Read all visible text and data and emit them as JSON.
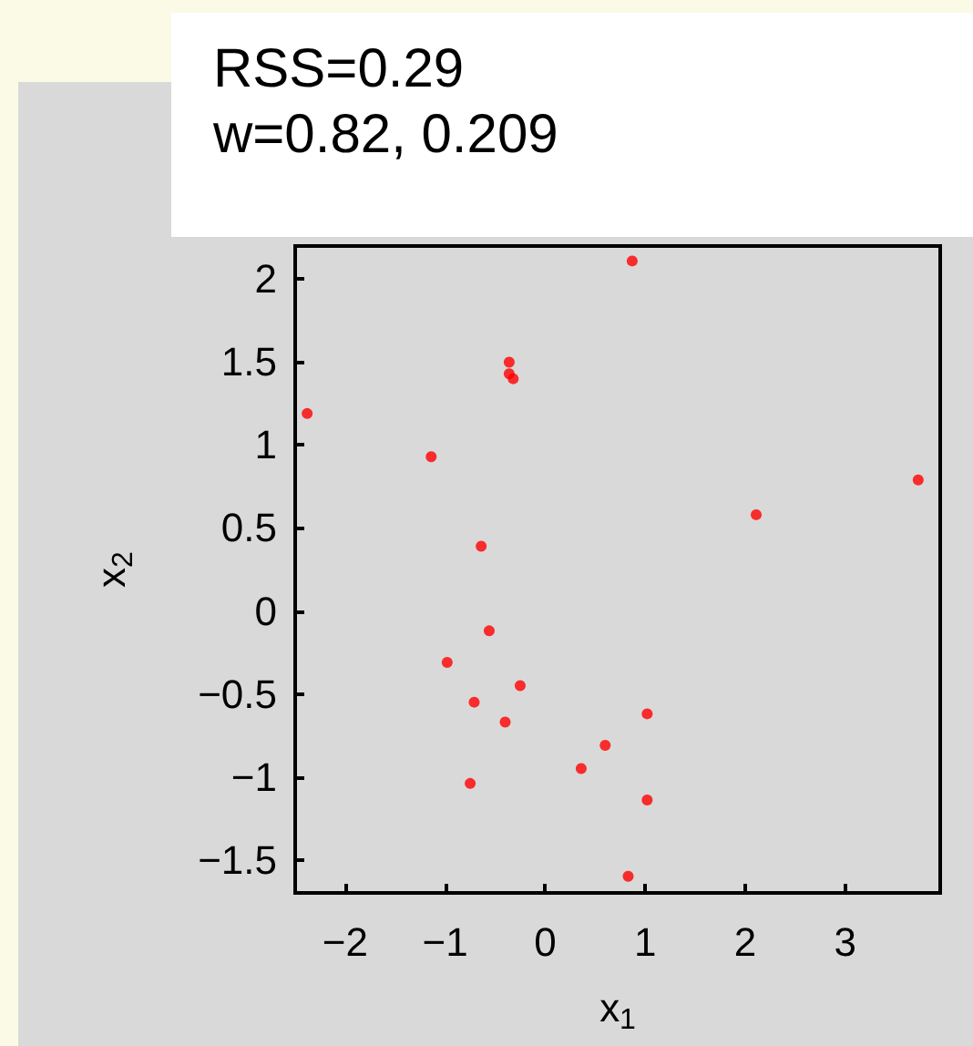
{
  "chart_data": {
    "type": "scatter",
    "title": "RSS=0.29",
    "subtitle": "w=0.82, 0.209",
    "xlabel": "x$_{1}$",
    "ylabel": "x$_{2}$",
    "x": [
      -2.38,
      -1.14,
      -0.36,
      -0.36,
      -0.32,
      0.87,
      3.73,
      2.11,
      -0.64,
      -0.56,
      -0.98,
      -0.25,
      -0.71,
      -0.4,
      1.02,
      0.6,
      0.36,
      -0.75,
      1.02,
      0.83
    ],
    "series": [
      {
        "color": "#ff0000",
        "values": [
          1.19,
          0.93,
          1.5,
          1.43,
          1.4,
          2.11,
          0.79,
          0.58,
          0.39,
          -0.12,
          -0.31,
          -0.45,
          -0.55,
          -0.67,
          -0.62,
          -0.81,
          -0.95,
          -1.04,
          -1.14,
          -1.6
        ]
      }
    ],
    "xlim": [
      -2.5,
      3.95
    ],
    "ylim": [
      -1.7,
      2.2
    ],
    "xticks": [
      -2,
      -1,
      0,
      1,
      2,
      3
    ],
    "yticks": [
      -1.5,
      -1,
      -0.5,
      0,
      0.5,
      1,
      1.5,
      2
    ],
    "marker": "circle"
  }
}
